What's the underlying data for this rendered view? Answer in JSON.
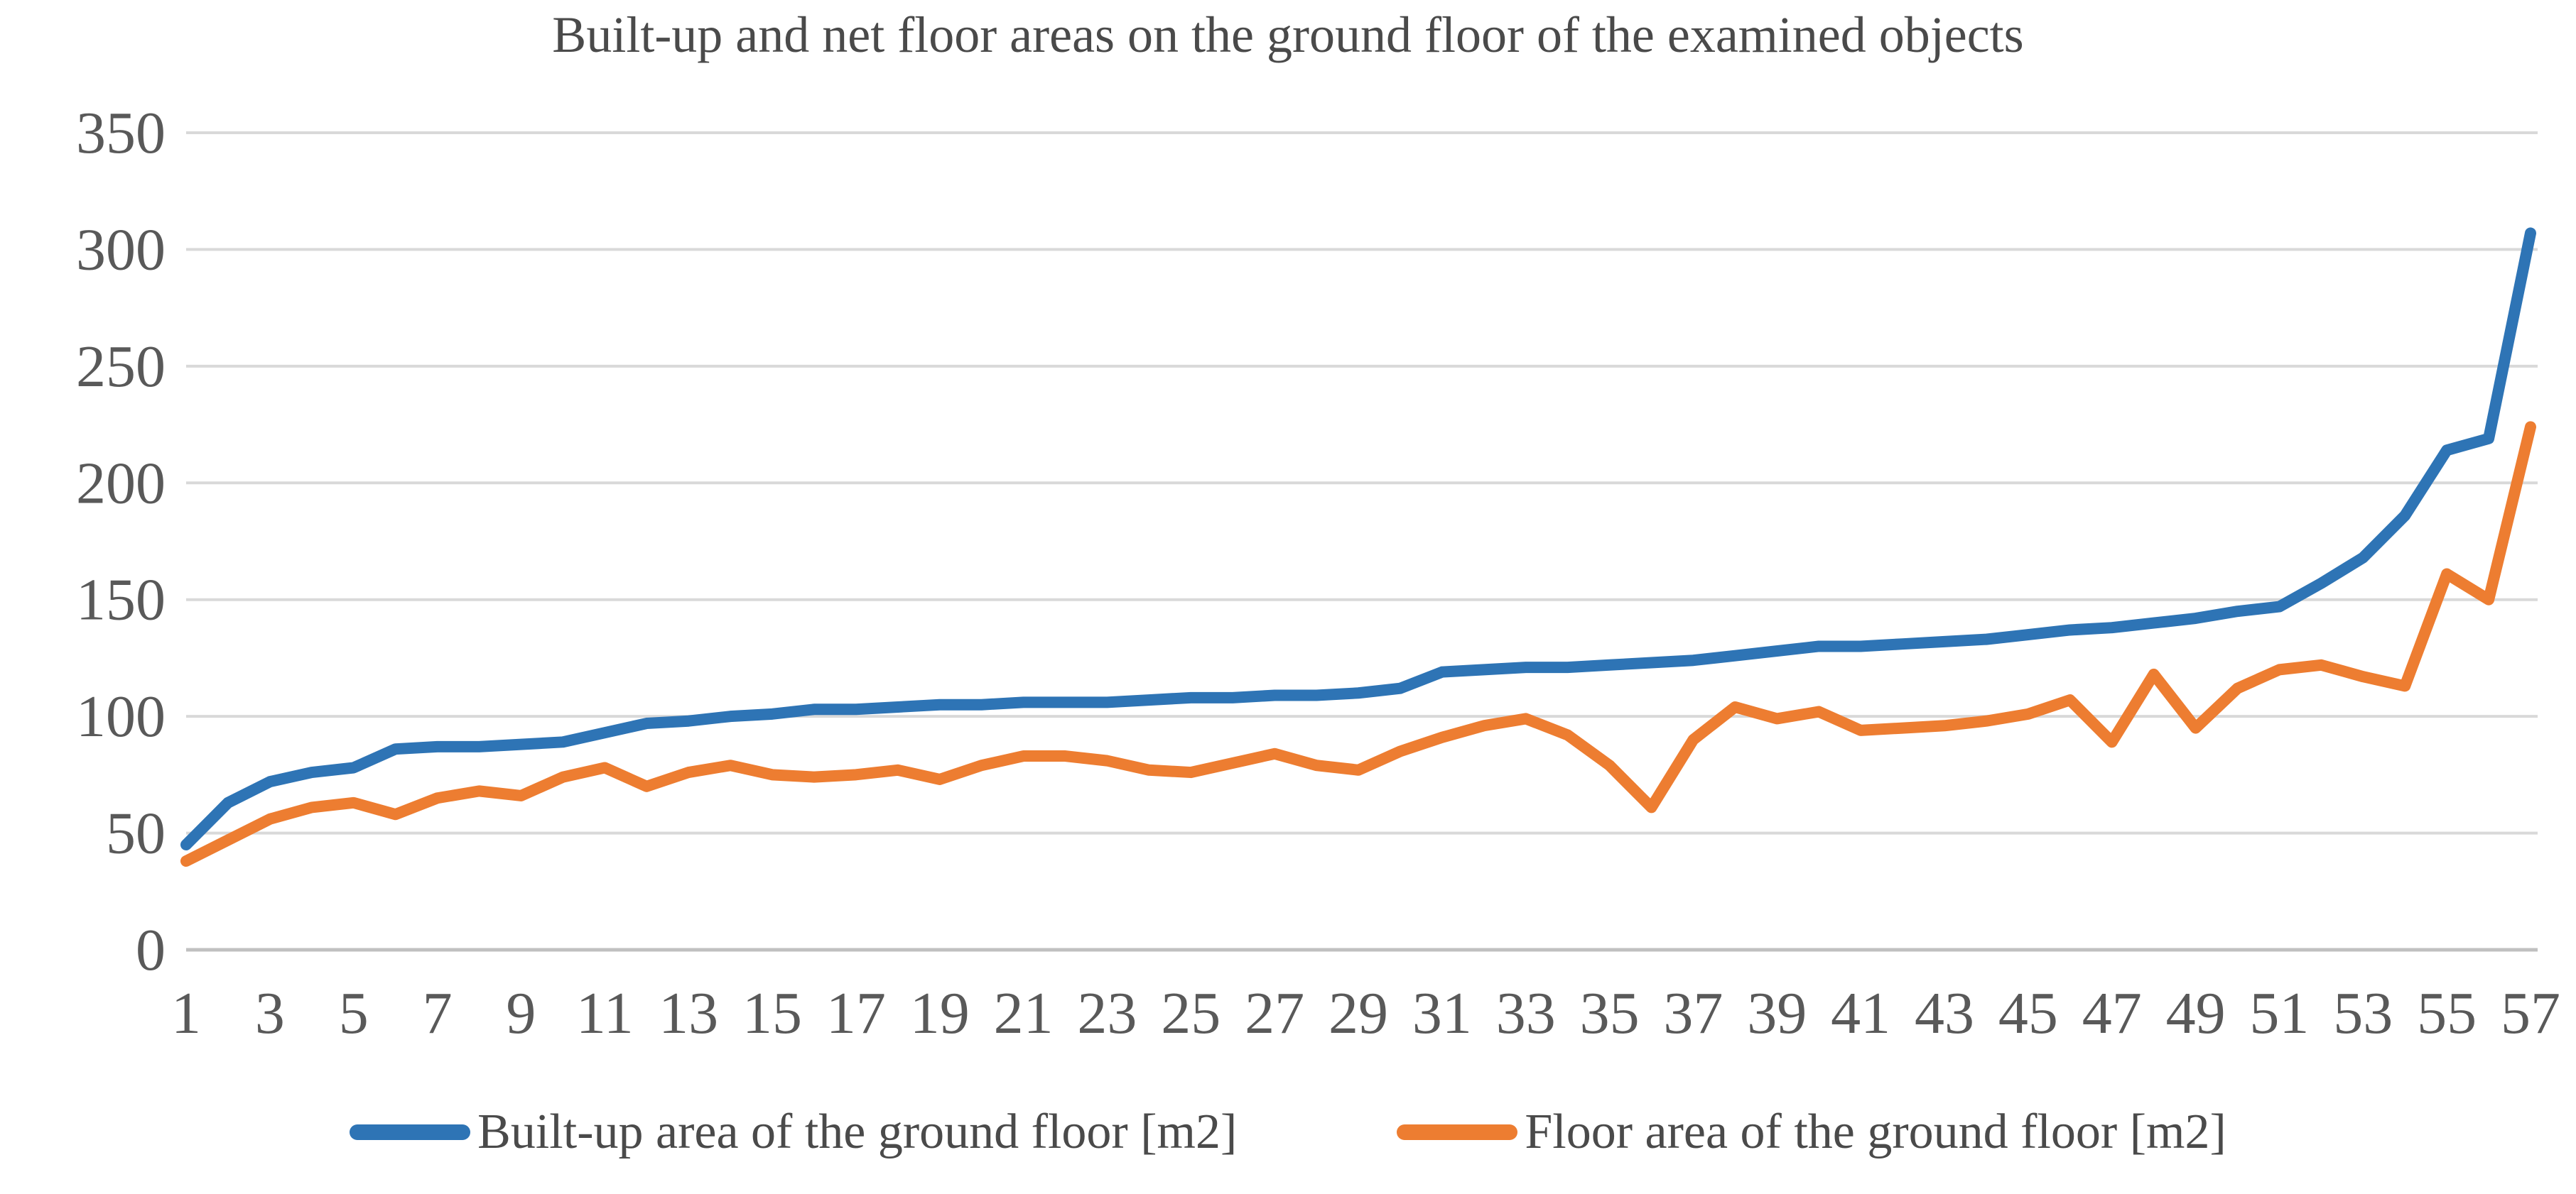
{
  "colors": {
    "built_up_series": "#2E74B5",
    "floor_series": "#ED7D31",
    "gridline": "#D9D9D9",
    "axis_line": "#C0C0C0",
    "tick_text": "#595959",
    "title_text": "#4a4a4a"
  },
  "chart_data": {
    "type": "line",
    "title": "Built-up and net floor areas on the ground floor of the examined objects",
    "x": [
      1,
      2,
      3,
      4,
      5,
      6,
      7,
      8,
      9,
      10,
      11,
      12,
      13,
      14,
      15,
      16,
      17,
      18,
      19,
      20,
      21,
      22,
      23,
      24,
      25,
      26,
      27,
      28,
      29,
      30,
      31,
      32,
      33,
      34,
      35,
      36,
      37,
      38,
      39,
      40,
      41,
      42,
      43,
      44,
      45,
      46,
      47,
      48,
      49,
      50,
      51,
      52,
      53,
      54,
      55,
      56,
      57
    ],
    "x_tick_labels": [
      "1",
      "3",
      "5",
      "7",
      "9",
      "11",
      "13",
      "15",
      "17",
      "19",
      "21",
      "23",
      "25",
      "27",
      "29",
      "31",
      "33",
      "35",
      "37",
      "39",
      "41",
      "43",
      "45",
      "47",
      "49",
      "51",
      "53",
      "55",
      "57"
    ],
    "y_ticks": [
      0,
      50,
      100,
      150,
      200,
      250,
      300,
      350
    ],
    "ylim": [
      0,
      350
    ],
    "xlabel": "",
    "ylabel": "",
    "grid": "horizontal-only",
    "legend_position": "bottom",
    "series": [
      {
        "name": "Built-up area of the ground floor [m2]",
        "color_key": "built_up_series",
        "values": [
          45,
          63,
          72,
          76,
          78,
          86,
          87,
          87,
          88,
          89,
          93,
          97,
          98,
          100,
          101,
          103,
          103,
          104,
          105,
          105,
          106,
          106,
          106,
          107,
          108,
          108,
          109,
          109,
          110,
          112,
          119,
          120,
          121,
          121,
          122,
          123,
          124,
          126,
          128,
          130,
          130,
          131,
          132,
          133,
          135,
          137,
          138,
          140,
          142,
          145,
          147,
          157,
          168,
          186,
          214,
          219,
          307
        ]
      },
      {
        "name": "Floor area of the ground floor [m2]",
        "color_key": "floor_series",
        "values": [
          38,
          47,
          56,
          61,
          63,
          58,
          65,
          68,
          66,
          74,
          78,
          70,
          76,
          79,
          75,
          74,
          75,
          77,
          73,
          79,
          83,
          83,
          81,
          77,
          76,
          80,
          84,
          79,
          77,
          85,
          91,
          96,
          99,
          92,
          79,
          61,
          90,
          104,
          99,
          102,
          94,
          95,
          96,
          98,
          101,
          107,
          89,
          118,
          95,
          112,
          120,
          122,
          117,
          113,
          161,
          150,
          224
        ]
      }
    ]
  }
}
